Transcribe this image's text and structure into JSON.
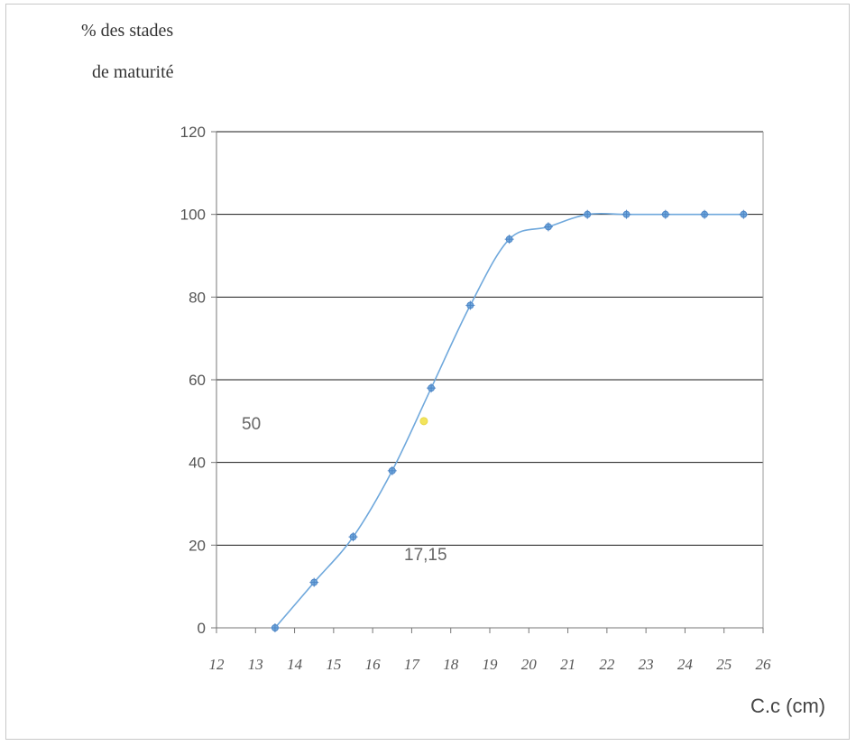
{
  "chart_data": {
    "type": "line",
    "title": "",
    "ylabel_line1": "% des stades",
    "ylabel_line2": "de maturité",
    "xlabel": "C.c (cm)",
    "xlim": [
      12,
      26
    ],
    "ylim": [
      0,
      120
    ],
    "x_ticks": [
      12,
      13,
      14,
      15,
      16,
      17,
      18,
      19,
      20,
      21,
      22,
      23,
      24,
      25,
      26
    ],
    "y_ticks": [
      0,
      20,
      40,
      60,
      80,
      100,
      120
    ],
    "grid": "horizontal",
    "series": [
      {
        "x": [
          13.5,
          14.5,
          15.5,
          16.5,
          17.5,
          18.5,
          19.5,
          20.5,
          21.5,
          22.5,
          23.5,
          24.5,
          25.5
        ],
        "values": [
          0,
          11,
          22,
          38,
          58,
          78,
          94,
          97,
          100,
          100,
          100,
          100,
          100
        ],
        "color": "#6fa8dc"
      }
    ],
    "highlight_point": {
      "x": 17.15,
      "y": 50,
      "color": "#f2e45c"
    },
    "annotations": {
      "y_value": "50",
      "x_value": "17,15"
    }
  }
}
